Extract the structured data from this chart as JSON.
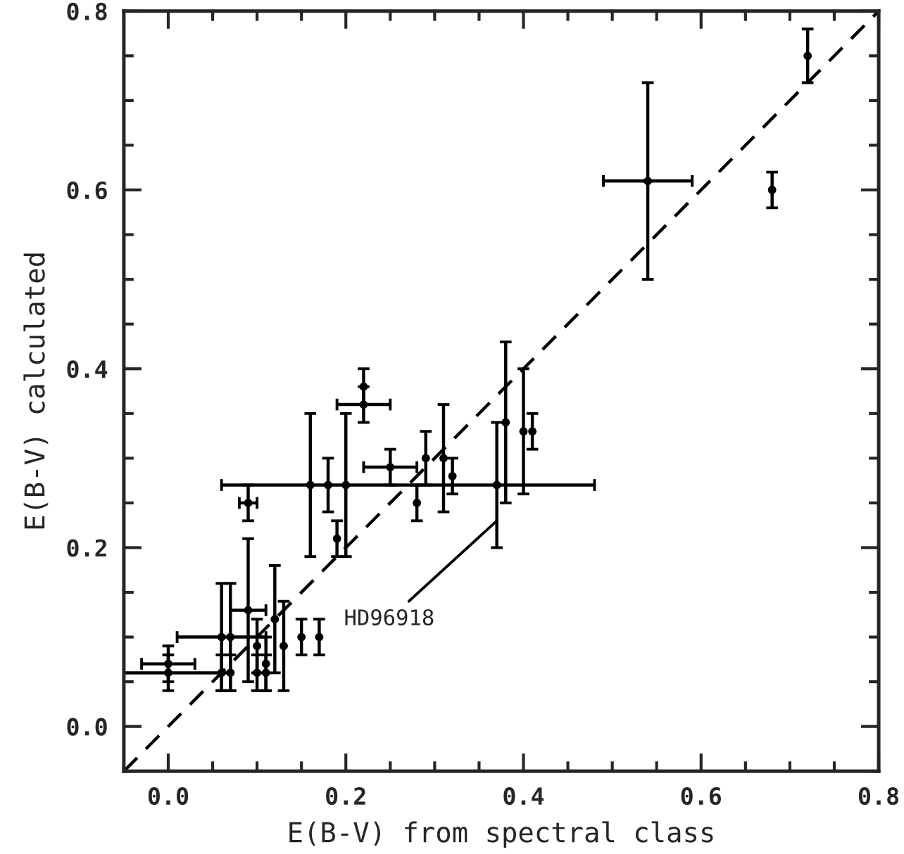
{
  "chart_data": {
    "type": "scatter",
    "xlabel": "E(B-V) from spectral class",
    "ylabel": "E(B-V) calculated",
    "xlim": [
      -0.05,
      0.8
    ],
    "ylim": [
      -0.05,
      0.8
    ],
    "xticks": [
      {
        "value": 0,
        "label": "0.0"
      },
      {
        "value": 0.2,
        "label": "0.2"
      },
      {
        "value": 0.4,
        "label": "0.4"
      },
      {
        "value": 0.6,
        "label": "0.6"
      },
      {
        "value": 0.8,
        "label": "0.8"
      }
    ],
    "yticks": [
      {
        "value": 0,
        "label": "0.0"
      },
      {
        "value": 0.2,
        "label": "0.2"
      },
      {
        "value": 0.4,
        "label": "0.4"
      },
      {
        "value": 0.6,
        "label": "0.6"
      },
      {
        "value": 0.8,
        "label": "0.8"
      }
    ],
    "grid": false,
    "legend": false,
    "marker": "circle",
    "series": [
      {
        "color": "#000000",
        "x": [
          0.72,
          0.68,
          0.54,
          0.41,
          0.4,
          0.38,
          0.37,
          0.32,
          0.31,
          0.29,
          0.28,
          0.25,
          0.22,
          0.22,
          0.2,
          0.18,
          0.16,
          0.19,
          0.09,
          0.09,
          0.12,
          0.13,
          0.17,
          0.15,
          0.11,
          0.11,
          0.1,
          0.1,
          0.07,
          0.07,
          0.06,
          0.06,
          0.0,
          0.0
        ],
        "values": [
          0.75,
          0.6,
          0.61,
          0.33,
          0.33,
          0.34,
          0.27,
          0.28,
          0.3,
          0.3,
          0.25,
          0.29,
          0.38,
          0.36,
          0.27,
          0.27,
          0.27,
          0.21,
          0.25,
          0.13,
          0.12,
          0.09,
          0.1,
          0.1,
          0.07,
          0.06,
          0.09,
          0.06,
          0.1,
          0.06,
          0.1,
          0.06,
          0.07,
          0.06
        ],
        "errors": [
          0.03,
          0.02,
          0.11,
          0.02,
          0.07,
          0.09,
          0.07,
          0.02,
          0.06,
          0.03,
          0.02,
          0.02,
          0.02,
          0.02,
          0.08,
          0.03,
          0.08,
          0.02,
          0.02,
          0.08,
          0.06,
          0.05,
          0.02,
          0.02,
          0.03,
          0.02,
          0.03,
          0.02,
          0.06,
          0.02,
          0.06,
          0.02,
          0.02,
          0.02
        ],
        "xerrors": [
          null,
          null,
          0.05,
          null,
          null,
          null,
          [
            0.06,
            0.48
          ],
          null,
          null,
          null,
          null,
          0.03,
          null,
          0.03,
          null,
          null,
          null,
          null,
          0.01,
          0.02,
          null,
          null,
          null,
          null,
          null,
          null,
          null,
          null,
          null,
          null,
          0.05,
          [
            -0.05,
            0.07
          ],
          0.03,
          null
        ]
      },
      {
        "type": "line",
        "color": "#000000",
        "line_style": "dashed",
        "marker": "none",
        "x": [
          -0.05,
          0.8
        ],
        "values": [
          -0.05,
          0.8
        ]
      }
    ],
    "annotations": [
      {
        "text": "HD96918",
        "x": 0.37,
        "y": 0.23
      }
    ]
  }
}
